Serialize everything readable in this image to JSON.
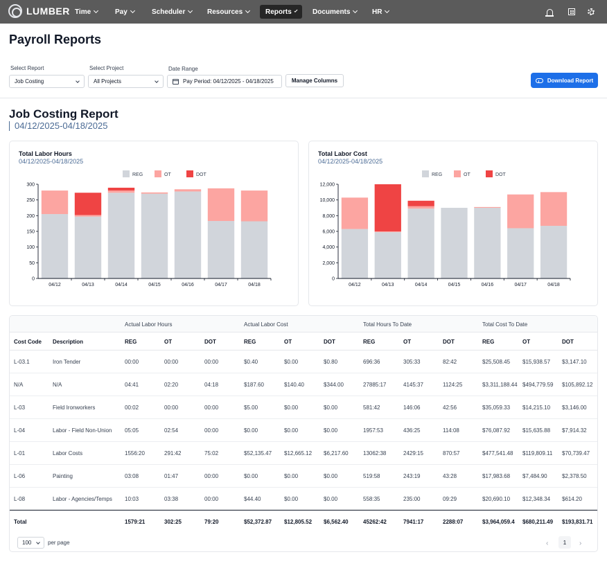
{
  "nav": {
    "brand": "LUMBER",
    "items": [
      {
        "label": "Time",
        "active": false
      },
      {
        "label": "Pay",
        "active": false
      },
      {
        "label": "Scheduler",
        "active": false
      },
      {
        "label": "Resources",
        "active": false
      },
      {
        "label": "Reports",
        "active": true
      },
      {
        "label": "Documents",
        "active": false
      },
      {
        "label": "HR",
        "active": false
      }
    ],
    "icons": [
      "bell-icon",
      "building-icon",
      "gear-icon"
    ]
  },
  "page": {
    "title": "Payroll Reports"
  },
  "controls": {
    "select_report_label": "Select Report",
    "select_report_value": "Job Costing",
    "select_project_label": "Select Project",
    "select_project_value": "All Projects",
    "date_range_label": "Date Range",
    "date_range_value": "Pay Period: 04/12/2025 - 04/18/2025",
    "manage_columns": "Manage Columns",
    "download": "Download Report"
  },
  "report": {
    "title": "Job Costing Report",
    "range": "04/12/2025-04/18/2025"
  },
  "colors": {
    "REG": "#d1d5db",
    "OT": "#fca5a1",
    "DOT": "#ef4444",
    "primary": "#1d6fe8"
  },
  "chart_data": [
    {
      "type": "bar",
      "stacked": true,
      "title": "Total Labor Hours",
      "subtitle": "04/12/2025-04/18/2025",
      "categories": [
        "04/12",
        "04/13",
        "04/14",
        "04/15",
        "04/16",
        "04/17",
        "04/18"
      ],
      "series": [
        {
          "name": "REG",
          "values": [
            205,
            197,
            273,
            270,
            277,
            183,
            182
          ]
        },
        {
          "name": "OT",
          "values": [
            75,
            5,
            7,
            4,
            7,
            104,
            98
          ]
        },
        {
          "name": "DOT",
          "values": [
            0,
            71,
            9,
            0,
            0,
            0,
            0
          ]
        }
      ],
      "ylim": [
        0,
        300
      ],
      "yticks": [
        0,
        50,
        100,
        150,
        200,
        250,
        300
      ],
      "ytick_labels": [
        "0",
        "50",
        "100",
        "150",
        "200",
        "250",
        "300"
      ],
      "legend": "top-center"
    },
    {
      "type": "bar",
      "stacked": true,
      "title": "Total Labor Cost",
      "subtitle": "04/12/2025-04/18/2025",
      "categories": [
        "04/12",
        "04/13",
        "04/14",
        "04/15",
        "04/16",
        "04/17",
        "04/18"
      ],
      "series": [
        {
          "name": "REG",
          "values": [
            6300,
            5900,
            8900,
            9000,
            9000,
            6400,
            6700
          ]
        },
        {
          "name": "OT",
          "values": [
            4000,
            100,
            300,
            0,
            100,
            4300,
            4300
          ]
        },
        {
          "name": "DOT",
          "values": [
            0,
            6000,
            700,
            0,
            0,
            0,
            0
          ]
        }
      ],
      "ylim": [
        0,
        12000
      ],
      "yticks": [
        0,
        2000,
        4000,
        6000,
        8000,
        10000,
        12000
      ],
      "ytick_labels": [
        "0",
        "2,000",
        "4,000",
        "6,000",
        "8,000",
        "10,000",
        "12,000"
      ],
      "legend": "top-center"
    }
  ],
  "table": {
    "groups": [
      "Actual Labor Hours",
      "Actual Labor Cost",
      "Total Hours To Date",
      "Total Cost To Date"
    ],
    "columns": [
      "Cost Code",
      "Description",
      "REG",
      "OT",
      "DOT",
      "REG",
      "OT",
      "DOT",
      "REG",
      "OT",
      "DOT",
      "REG",
      "OT",
      "DOT"
    ],
    "rows": [
      [
        "L-03.1",
        "Iron Tender",
        "00:00",
        "00:00",
        "00:00",
        "$0.40",
        "$0.00",
        "$0.80",
        "696:36",
        "305:33",
        "82:42",
        "$25,508.45",
        "$15,938.57",
        "$3,147.10"
      ],
      [
        "N/A",
        "N/A",
        "04:41",
        "02:20",
        "04:18",
        "$187.60",
        "$140.40",
        "$344.00",
        "27885:17",
        "4145:37",
        "1124:25",
        "$3,311,188.44",
        "$494,779.59",
        "$105,892.12"
      ],
      [
        "L-03",
        "Field Ironworkers",
        "00:02",
        "00:00",
        "00:00",
        "$5.00",
        "$0.00",
        "$0.00",
        "581:42",
        "146:06",
        "42:56",
        "$35,059.33",
        "$14,215.10",
        "$3,146.00"
      ],
      [
        "L-04",
        "Labor - Field Non-Union",
        "05:05",
        "02:54",
        "00:00",
        "$0.00",
        "$0.00",
        "$0.00",
        "1957:53",
        "436:25",
        "114:08",
        "$76,087.92",
        "$15,635.88",
        "$7,914.32"
      ],
      [
        "L-01",
        "Labor Costs",
        "1556:20",
        "291:42",
        "75:02",
        "$52,135.47",
        "$12,665.12",
        "$6,217.60",
        "13062:38",
        "2429:15",
        "870:57",
        "$477,541.48",
        "$119,809.11",
        "$70,739.47"
      ],
      [
        "L-06",
        "Painting",
        "03:08",
        "01:47",
        "00:00",
        "$0.00",
        "$0.00",
        "$0.00",
        "519:58",
        "243:19",
        "43:28",
        "$17,983.68",
        "$7,484.90",
        "$2,378.50"
      ],
      [
        "L-08",
        "Labor - Agencies/Temps",
        "10:03",
        "03:38",
        "00:00",
        "$44.40",
        "$0.00",
        "$0.00",
        "558:35",
        "235:00",
        "09:29",
        "$20,690.10",
        "$12,348.34",
        "$614.20"
      ]
    ],
    "total": [
      "Total",
      "",
      "1579:21",
      "302:25",
      "79:20",
      "$52,372.87",
      "$12,805.52",
      "$6,562.40",
      "45262:42",
      "7941:17",
      "2288:07",
      "$3,964,059.4",
      "$680,211.49",
      "$193,831.71"
    ]
  },
  "pager": {
    "page_size": "100",
    "per_page": "per page",
    "current_page": "1"
  }
}
